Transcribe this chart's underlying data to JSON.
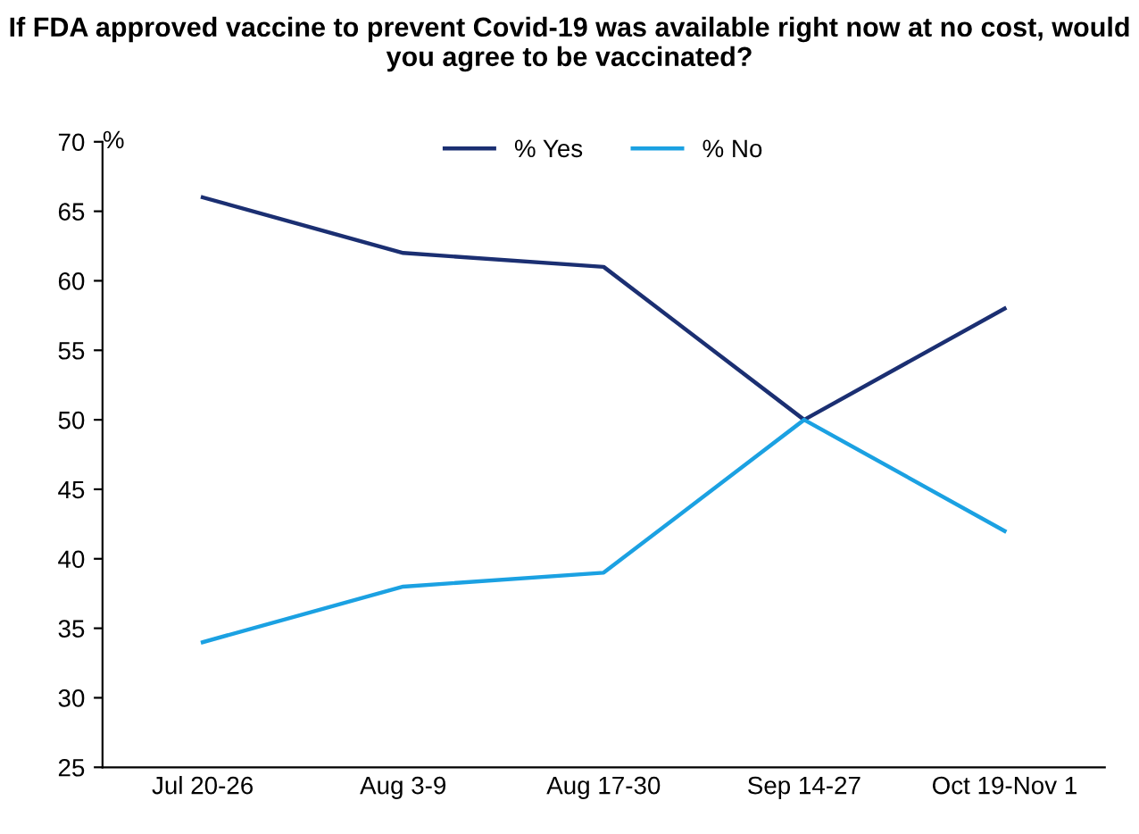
{
  "chart_data": {
    "type": "line",
    "title": "If FDA approved vaccine to prevent Covid-19 was available right now at no cost, would you agree to be vaccinated?",
    "ylabel": "%",
    "categories": [
      "Jul 20-26",
      "Aug 3-9",
      "Aug 17-30",
      "Sep 14-27",
      "Oct 19-Nov 1"
    ],
    "series": [
      {
        "name": "% Yes",
        "color": "#1b2f72",
        "values": [
          66,
          62,
          61,
          50,
          58
        ]
      },
      {
        "name": "% No",
        "color": "#1ba1e2",
        "values": [
          34,
          38,
          39,
          50,
          42
        ]
      }
    ],
    "ylim": [
      25,
      70
    ],
    "yticks": [
      25,
      30,
      35,
      40,
      45,
      50,
      55,
      60,
      65,
      70
    ],
    "grid": false,
    "legend": "top",
    "marker": "none",
    "line_style": "solid"
  }
}
